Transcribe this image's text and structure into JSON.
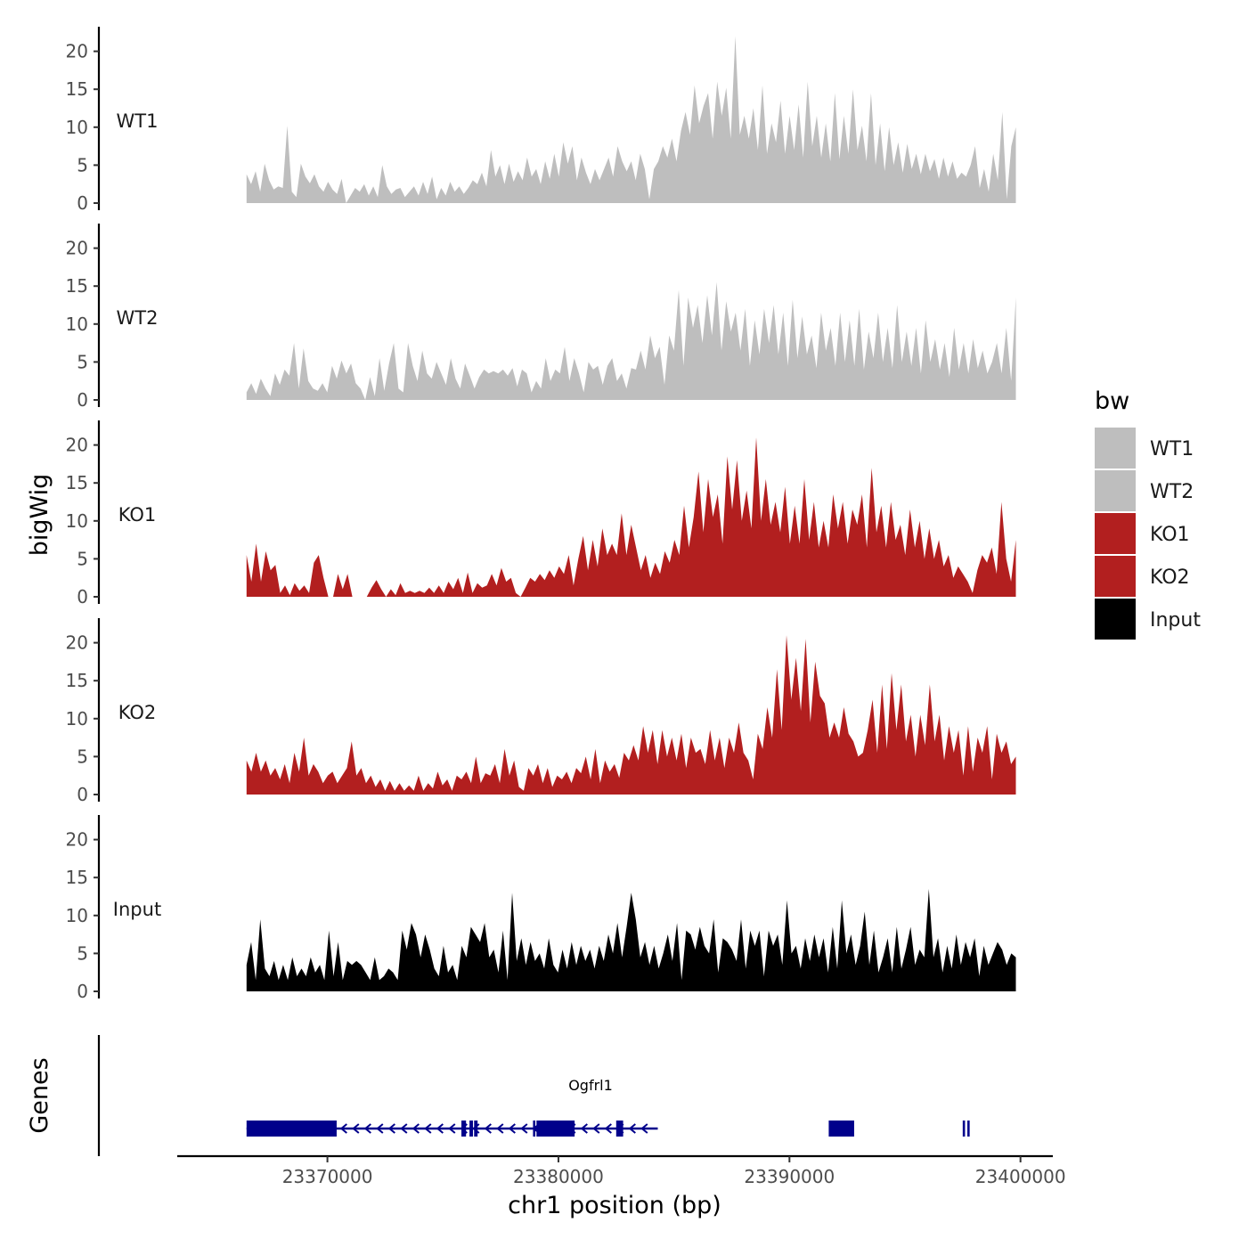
{
  "chart_data": {
    "type": "area",
    "ylabel": "bigWig",
    "xlabel": "chr1 position (bp)",
    "x_ticks": [
      23370000,
      23380000,
      23390000,
      23400000
    ],
    "x_tick_labels": [
      "23370000",
      "23380000",
      "23390000",
      "23400000"
    ],
    "xlim": [
      23363500,
      23401400
    ],
    "ylim": [
      0,
      23
    ],
    "y_ticks": [
      0,
      5,
      10,
      15,
      20
    ],
    "y_tick_labels": [
      "0",
      "5",
      "10",
      "15",
      "20"
    ],
    "x_start": 23366500,
    "x_end": 23399800,
    "series": [
      {
        "name": "WT1",
        "color": "#bebebe",
        "values": [
          3.8,
          2.5,
          4.2,
          1.5,
          5.2,
          3.0,
          1.8,
          2.2,
          2.0,
          10.2,
          1.5,
          0.8,
          5.2,
          3.5,
          2.6,
          3.8,
          2.2,
          1.5,
          2.8,
          1.8,
          1.2,
          3.2,
          0,
          1.0,
          2.0,
          1.5,
          2.5,
          1.0,
          2.2,
          0.8,
          5.0,
          2.2,
          1.2,
          1.8,
          2.0,
          0.8,
          1.5,
          2.2,
          1.0,
          2.8,
          1.2,
          3.5,
          0.5,
          2.0,
          1.0,
          2.8,
          1.5,
          2.2,
          1.2,
          2.0,
          3.0,
          2.5,
          4.0,
          2.2,
          7.0,
          3.5,
          5.0,
          2.5,
          5.2,
          2.8,
          4.2,
          3.0,
          6.0,
          3.5,
          4.5,
          2.5,
          5.5,
          3.2,
          6.5,
          3.5,
          8.0,
          5.2,
          7.5,
          3.0,
          6.0,
          4.0,
          2.5,
          4.5,
          3.0,
          4.5,
          6.0,
          3.5,
          7.5,
          5.5,
          4.2,
          5.5,
          3.0,
          6.5,
          4.5,
          0.5,
          4.5,
          5.5,
          7.5,
          6.0,
          8.5,
          5.5,
          9.5,
          12.0,
          9.0,
          15.5,
          10.5,
          12.8,
          14.5,
          8.5,
          16.0,
          11.5,
          15.2,
          8.5,
          22.0,
          9.0,
          11.5,
          8.5,
          12.5,
          7.0,
          15.5,
          6.5,
          10.5,
          8.0,
          13.5,
          6.5,
          11.5,
          7.0,
          13.0,
          6.0,
          16.0,
          7.5,
          11.5,
          6.0,
          10.5,
          5.5,
          14.5,
          5.8,
          11.5,
          6.5,
          15.0,
          7.0,
          10.2,
          5.5,
          14.5,
          5.0,
          10.5,
          4.2,
          10.0,
          5.0,
          8.0,
          4.0,
          7.8,
          4.5,
          6.5,
          3.8,
          6.5,
          4.2,
          5.8,
          3.2,
          6.0,
          3.5,
          5.5,
          3.2,
          4.0,
          3.5,
          5.0,
          7.5,
          2.0,
          4.5,
          1.5,
          6.5,
          3.0,
          12.0,
          0.5,
          7.5,
          10.0
        ]
      },
      {
        "name": "WT2",
        "color": "#bebebe",
        "values": [
          1.0,
          2.2,
          0.8,
          2.8,
          1.5,
          0.5,
          3.5,
          2.0,
          4.0,
          3.2,
          7.5,
          1.5,
          6.8,
          2.5,
          1.5,
          1.2,
          2.2,
          1.0,
          4.5,
          2.8,
          5.2,
          3.5,
          4.8,
          2.2,
          1.5,
          0.0,
          3.0,
          0.5,
          5.5,
          1.2,
          4.8,
          7.5,
          1.5,
          1.0,
          7.5,
          4.5,
          2.5,
          6.5,
          3.5,
          2.8,
          5.0,
          3.5,
          2.0,
          5.5,
          2.8,
          1.5,
          4.8,
          3.2,
          1.5,
          3.0,
          4.0,
          3.5,
          3.8,
          3.5,
          4.0,
          3.2,
          4.2,
          1.8,
          4.0,
          3.5,
          1.0,
          2.5,
          1.5,
          5.5,
          2.5,
          4.0,
          3.5,
          7.0,
          2.5,
          5.5,
          3.5,
          1.0,
          5.0,
          4.0,
          4.5,
          2.0,
          4.5,
          5.5,
          2.5,
          3.5,
          1.5,
          4.2,
          4.0,
          6.5,
          4.0,
          8.5,
          5.5,
          7.0,
          2.0,
          8.5,
          6.5,
          14.5,
          4.5,
          13.5,
          9.5,
          12.5,
          7.5,
          13.8,
          8.5,
          15.5,
          6.5,
          13.0,
          9.0,
          11.5,
          6.5,
          12.0,
          4.5,
          10.5,
          6.0,
          12.0,
          7.5,
          12.5,
          6.0,
          11.5,
          4.5,
          13.2,
          5.5,
          11.0,
          6.0,
          8.5,
          4.2,
          11.5,
          6.5,
          9.5,
          4.5,
          11.5,
          5.0,
          10.5,
          4.5,
          12.0,
          4.0,
          9.0,
          5.5,
          11.5,
          5.0,
          9.5,
          4.2,
          12.5,
          5.0,
          9.0,
          4.5,
          9.5,
          3.5,
          10.5,
          5.0,
          8.0,
          4.0,
          7.5,
          3.0,
          9.5,
          4.0,
          7.5,
          3.5,
          8.0,
          4.2,
          6.5,
          3.5,
          5.0,
          7.5,
          3.5,
          9.5,
          2.5,
          13.5
        ]
      },
      {
        "name": "KO1",
        "color": "#b21f1f",
        "values": [
          5.5,
          2.0,
          7.0,
          2.0,
          6.0,
          3.5,
          4.2,
          0.5,
          1.5,
          0.2,
          1.8,
          0.8,
          1.5,
          0.5,
          4.5,
          5.5,
          2.5,
          0,
          0,
          3.0,
          1.0,
          3.0,
          0,
          0,
          0,
          0,
          1.2,
          2.2,
          1.0,
          0,
          1.0,
          0.2,
          1.8,
          0.5,
          0.8,
          0.5,
          0.8,
          0.5,
          1.2,
          0.5,
          1.5,
          0.5,
          2.0,
          1.0,
          2.5,
          0.5,
          3.2,
          0.5,
          1.8,
          1.2,
          1.5,
          3.0,
          1.5,
          3.8,
          2.0,
          2.5,
          0.5,
          0,
          1.2,
          2.5,
          2.0,
          3.0,
          2.2,
          3.5,
          2.5,
          4.0,
          3.0,
          5.5,
          1.5,
          5.0,
          8.0,
          3.5,
          7.5,
          4.0,
          9.0,
          5.5,
          7.0,
          5.5,
          11.0,
          5.5,
          9.5,
          6.5,
          3.5,
          5.5,
          2.5,
          4.5,
          3.0,
          6.0,
          4.5,
          7.5,
          5.5,
          12.0,
          6.5,
          10.5,
          16.5,
          8.5,
          15.5,
          10.5,
          13.5,
          7.0,
          18.5,
          11.5,
          18.0,
          10.0,
          14.0,
          9.0,
          21.0,
          10.0,
          15.5,
          9.5,
          12.5,
          8.5,
          14.5,
          7.0,
          12.0,
          7.0,
          15.5,
          7.5,
          12.5,
          6.5,
          10.0,
          6.5,
          13.5,
          9.0,
          12.5,
          7.0,
          11.5,
          9.5,
          13.5,
          6.5,
          17.0,
          8.5,
          12.0,
          6.5,
          12.5,
          7.5,
          9.5,
          5.5,
          11.5,
          6.5,
          10.0,
          5.0,
          9.0,
          5.0,
          7.5,
          4.0,
          5.5,
          2.5,
          4.0,
          3.0,
          2.0,
          0.5,
          3.5,
          5.5,
          4.5,
          6.5,
          3.0,
          12.5,
          5.0,
          2.0,
          7.5
        ]
      },
      {
        "name": "KO2",
        "color": "#b21f1f",
        "values": [
          4.5,
          3.0,
          5.5,
          3.0,
          4.5,
          2.5,
          3.5,
          2.0,
          4.0,
          1.5,
          5.5,
          3.0,
          7.5,
          2.5,
          4.0,
          3.0,
          1.5,
          2.5,
          3.0,
          1.5,
          2.5,
          3.5,
          7.0,
          2.5,
          3.5,
          1.5,
          2.5,
          1.0,
          2.0,
          0.5,
          1.8,
          0.5,
          1.5,
          0.5,
          1.2,
          0.5,
          2.5,
          0.5,
          1.5,
          0.8,
          3.0,
          1.2,
          2.0,
          0.5,
          2.5,
          2.0,
          3.0,
          1.5,
          5.0,
          1.5,
          2.8,
          2.5,
          4.0,
          1.5,
          6.0,
          2.5,
          4.5,
          1.0,
          0.5,
          3.5,
          2.5,
          4.0,
          1.5,
          3.5,
          1.0,
          2.5,
          2.0,
          3.0,
          1.5,
          3.5,
          2.8,
          5.0,
          2.0,
          6.0,
          1.5,
          4.5,
          3.0,
          4.0,
          2.2,
          5.5,
          4.5,
          6.5,
          4.5,
          9.0,
          5.5,
          8.5,
          4.0,
          8.5,
          5.0,
          7.5,
          4.5,
          8.0,
          3.5,
          7.5,
          5.5,
          6.0,
          4.0,
          8.5,
          4.5,
          7.5,
          3.5,
          7.5,
          5.5,
          9.5,
          5.5,
          4.5,
          2.0,
          8.0,
          6.0,
          11.5,
          7.5,
          16.5,
          8.5,
          21.0,
          12.5,
          18.0,
          11.0,
          20.5,
          9.5,
          17.5,
          13.0,
          12.0,
          7.5,
          9.5,
          7.5,
          11.5,
          8.0,
          7.0,
          5.0,
          5.5,
          8.5,
          12.5,
          5.5,
          14.5,
          6.0,
          16.0,
          8.5,
          14.5,
          7.0,
          10.5,
          5.0,
          10.5,
          6.5,
          14.5,
          7.0,
          10.5,
          4.5,
          9.0,
          5.5,
          8.5,
          2.5,
          9.0,
          3.0,
          7.5,
          5.5,
          9.0,
          2.0,
          8.0,
          5.5,
          7.0,
          4.0,
          5.0
        ]
      },
      {
        "name": "Input",
        "color": "#000000",
        "values": [
          3.5,
          6.5,
          1.5,
          9.5,
          3.0,
          2.0,
          4.0,
          1.5,
          3.5,
          1.5,
          4.5,
          2.0,
          3.0,
          2.0,
          4.5,
          2.5,
          3.5,
          1.5,
          8.0,
          2.0,
          6.5,
          1.5,
          4.0,
          3.5,
          4.0,
          3.5,
          2.5,
          1.5,
          4.5,
          1.5,
          2.0,
          3.0,
          2.5,
          1.5,
          8.0,
          5.5,
          9.0,
          7.5,
          4.5,
          7.5,
          5.5,
          3.0,
          2.0,
          6.0,
          2.5,
          3.5,
          1.5,
          6.0,
          4.5,
          8.5,
          7.5,
          6.5,
          9.0,
          4.5,
          5.5,
          2.5,
          8.0,
          1.5,
          13.0,
          4.0,
          7.0,
          3.5,
          6.5,
          4.0,
          5.0,
          3.0,
          7.0,
          3.5,
          2.5,
          5.5,
          3.0,
          6.5,
          3.5,
          6.0,
          4.0,
          5.5,
          3.0,
          6.0,
          4.0,
          7.5,
          5.0,
          9.0,
          4.5,
          8.5,
          13.0,
          9.5,
          4.5,
          6.5,
          3.5,
          6.0,
          3.0,
          5.0,
          7.5,
          4.0,
          9.0,
          1.5,
          8.0,
          7.5,
          5.5,
          8.5,
          6.0,
          5.0,
          9.5,
          2.5,
          7.0,
          6.5,
          5.5,
          4.0,
          9.5,
          3.0,
          8.0,
          6.0,
          8.0,
          2.0,
          8.0,
          6.0,
          7.5,
          3.5,
          12.0,
          5.0,
          6.0,
          3.0,
          7.0,
          4.0,
          7.5,
          4.5,
          7.0,
          2.5,
          8.5,
          3.0,
          12.0,
          5.0,
          7.5,
          3.5,
          6.0,
          10.5,
          3.5,
          8.0,
          2.5,
          4.5,
          7.0,
          2.5,
          8.5,
          3.0,
          5.5,
          8.5,
          3.5,
          5.5,
          4.5,
          13.5,
          4.5,
          7.0,
          2.5,
          6.0,
          3.0,
          7.5,
          3.5,
          6.5,
          4.5,
          7.0,
          2.0,
          6.0,
          3.5,
          5.0,
          6.5,
          5.5,
          3.5,
          5.0,
          4.5
        ]
      }
    ],
    "legend": {
      "title": "bw",
      "entries": [
        {
          "label": "WT1",
          "color": "#bebebe"
        },
        {
          "label": "WT2",
          "color": "#bebebe"
        },
        {
          "label": "KO1",
          "color": "#b21f1f"
        },
        {
          "label": "KO2",
          "color": "#b21f1f"
        },
        {
          "label": "Input",
          "color": "#000000"
        }
      ]
    },
    "genes": {
      "track_title": "Genes",
      "name": "Ogfrl1",
      "color": "#00008b",
      "start": 23366500,
      "end": 23384300,
      "exons": [
        {
          "start": 23366500,
          "end": 23370400
        },
        {
          "start": 23375800,
          "end": 23376000
        },
        {
          "start": 23376150,
          "end": 23376300
        },
        {
          "start": 23376350,
          "end": 23376500
        },
        {
          "start": 23378900,
          "end": 23379000
        },
        {
          "start": 23379050,
          "end": 23380700
        },
        {
          "start": 23382500,
          "end": 23382800
        },
        {
          "start": 23391700,
          "end": 23392800
        },
        {
          "start": 23397500,
          "end": 23397600
        },
        {
          "start": 23397700,
          "end": 23397800
        }
      ]
    }
  }
}
